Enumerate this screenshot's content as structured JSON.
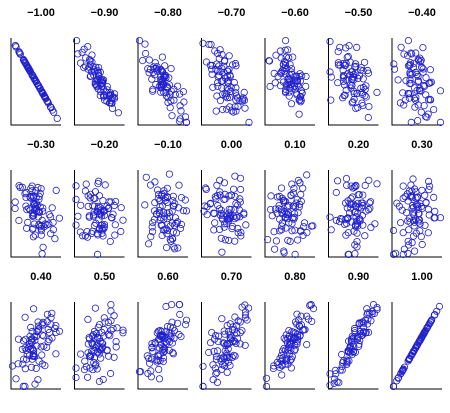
{
  "chart_data": {
    "type": "scatter",
    "x_range": [
      -2.5,
      2.5
    ],
    "y_range": [
      -2.5,
      2.5
    ],
    "n_points_per_panel": 80,
    "marker": "open-circle",
    "panels": [
      {
        "title": "−1.00",
        "r": -1.0
      },
      {
        "title": "−0.90",
        "r": -0.9
      },
      {
        "title": "−0.80",
        "r": -0.8
      },
      {
        "title": "−0.70",
        "r": -0.7
      },
      {
        "title": "−0.60",
        "r": -0.6
      },
      {
        "title": "−0.50",
        "r": -0.5
      },
      {
        "title": "−0.40",
        "r": -0.4
      },
      {
        "title": "−0.30",
        "r": -0.3
      },
      {
        "title": "−0.20",
        "r": -0.2
      },
      {
        "title": "−0.10",
        "r": -0.1
      },
      {
        "title": "0.00",
        "r": 0.0
      },
      {
        "title": "0.10",
        "r": 0.1
      },
      {
        "title": "0.20",
        "r": 0.2
      },
      {
        "title": "0.30",
        "r": 0.3
      },
      {
        "title": "0.40",
        "r": 0.4
      },
      {
        "title": "0.50",
        "r": 0.5
      },
      {
        "title": "0.60",
        "r": 0.6
      },
      {
        "title": "0.70",
        "r": 0.7
      },
      {
        "title": "0.80",
        "r": 0.8
      },
      {
        "title": "0.90",
        "r": 0.9
      },
      {
        "title": "1.00",
        "r": 1.0
      }
    ],
    "grid": false,
    "legend": "none"
  },
  "colors": {
    "marker": "#2222cc",
    "axis": "#000000",
    "background": "#ffffff"
  }
}
